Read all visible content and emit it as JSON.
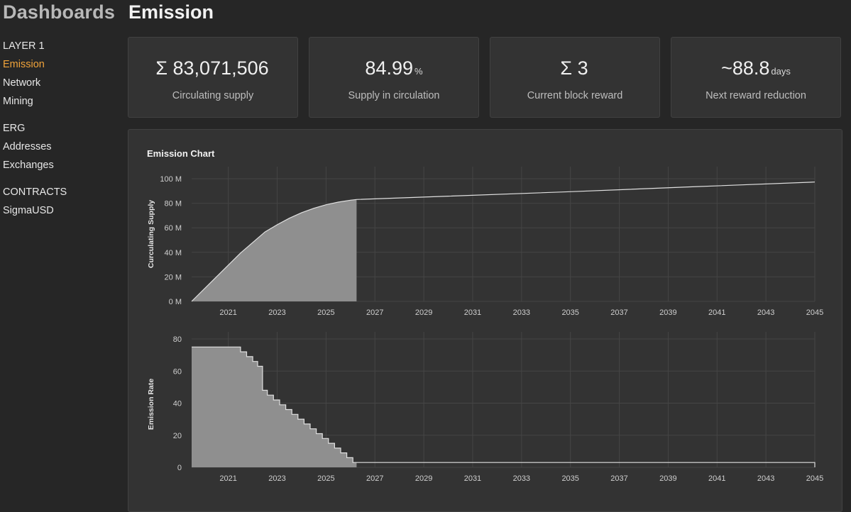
{
  "header": {
    "brand": "Dashboards",
    "title": "Emission"
  },
  "sidebar": {
    "groups": [
      {
        "heading": "LAYER 1",
        "items": [
          "Emission",
          "Network",
          "Mining"
        ]
      },
      {
        "heading": "ERG",
        "items": [
          "Addresses",
          "Exchanges"
        ]
      },
      {
        "heading": "CONTRACTS",
        "items": [
          "SigmaUSD"
        ]
      }
    ],
    "active": "Emission"
  },
  "cards": [
    {
      "value": "Σ 83,071,506",
      "unit": "",
      "label": "Circulating supply"
    },
    {
      "value": "84.99",
      "unit": "%",
      "label": "Supply in circulation"
    },
    {
      "value": "Σ 3",
      "unit": "",
      "label": "Current block reward"
    },
    {
      "value": "~88.8",
      "unit": "days",
      "label": "Next reward reduction"
    }
  ],
  "panel": {
    "title": "Emission Chart"
  },
  "colors": {
    "accent": "#f0a33a",
    "fill": "#8f8f8f",
    "line": "#e0e0e0",
    "grid": "#454545"
  },
  "chart_data": [
    {
      "type": "area",
      "title": "Emission Chart",
      "ylabel": "Curculating Supply",
      "xlabel": "",
      "xlim": [
        2019.5,
        2045
      ],
      "ylim": [
        0,
        100
      ],
      "x_ticks": [
        "2021",
        "2023",
        "2025",
        "2027",
        "2029",
        "2031",
        "2033",
        "2035",
        "2037",
        "2039",
        "2041",
        "2043",
        "2045"
      ],
      "y_ticks": [
        "0 M",
        "20 M",
        "40 M",
        "60 M",
        "80 M",
        "100 M"
      ],
      "y_tick_values": [
        0,
        20,
        40,
        60,
        80,
        100
      ],
      "current_x": 2026.25,
      "series": [
        {
          "name": "Curculating Supply",
          "x": [
            2019.5,
            2020.5,
            2021.5,
            2022.5,
            2023.0,
            2023.5,
            2024.0,
            2024.5,
            2025.0,
            2025.5,
            2026.0,
            2026.25,
            2030.0,
            2035.0,
            2040.0,
            2045.0
          ],
          "values": [
            0,
            19.7,
            39.4,
            56.6,
            62.5,
            67.8,
            72.3,
            75.9,
            78.8,
            80.9,
            82.5,
            83.07,
            85.8,
            89.4,
            93.4,
            97.3
          ]
        }
      ]
    },
    {
      "type": "area",
      "title": "",
      "ylabel": "Emission Rate",
      "xlabel": "",
      "xlim": [
        2019.5,
        2045
      ],
      "ylim": [
        0,
        80
      ],
      "x_ticks": [
        "2021",
        "2023",
        "2025",
        "2027",
        "2029",
        "2031",
        "2033",
        "2035",
        "2037",
        "2039",
        "2041",
        "2043",
        "2045"
      ],
      "y_ticks": [
        "0",
        "20",
        "40",
        "60",
        "80"
      ],
      "y_tick_values": [
        0,
        20,
        40,
        60,
        80
      ],
      "current_x": 2026.25,
      "series": [
        {
          "name": "Emission Rate",
          "x": [
            2019.5,
            2021.5,
            2021.75,
            2022.0,
            2022.2,
            2022.4,
            2022.6,
            2022.85,
            2023.1,
            2023.35,
            2023.6,
            2023.85,
            2024.1,
            2024.35,
            2024.6,
            2024.85,
            2025.1,
            2025.35,
            2025.6,
            2025.85,
            2026.1,
            2026.25,
            2044.9,
            2045.0
          ],
          "values": [
            75,
            72,
            69,
            66,
            63,
            48,
            45,
            42,
            39,
            36,
            33,
            30,
            27,
            24,
            21,
            18,
            15,
            12,
            9,
            6,
            3,
            3,
            3,
            0
          ]
        }
      ]
    }
  ]
}
